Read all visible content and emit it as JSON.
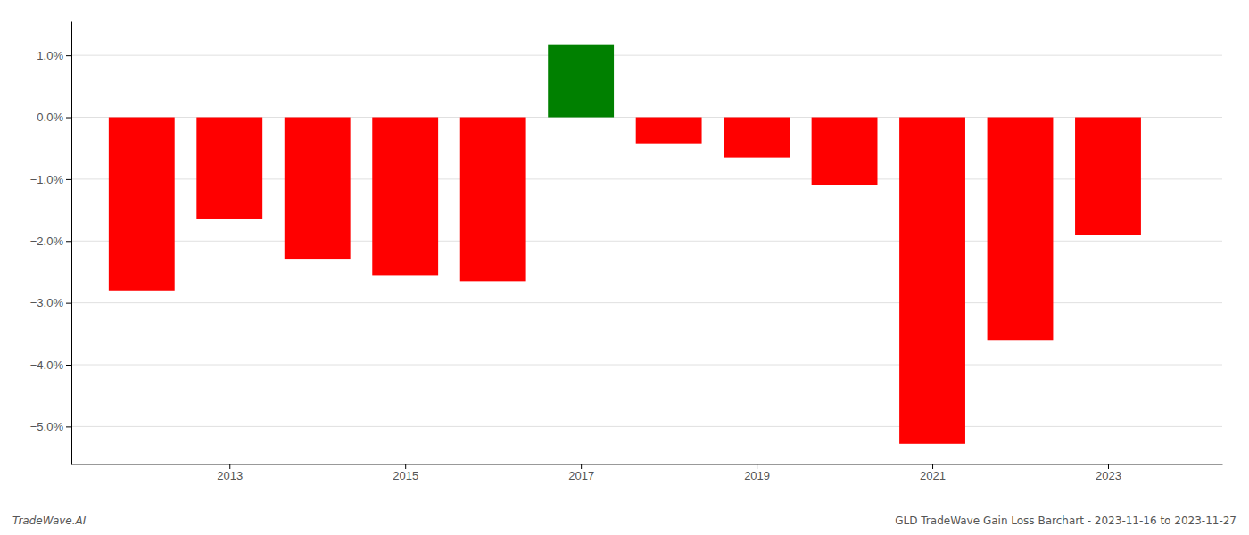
{
  "chart_data": {
    "type": "bar",
    "x": [
      2012,
      2013,
      2014,
      2015,
      2016,
      2017,
      2018,
      2019,
      2020,
      2021,
      2022,
      2023
    ],
    "values": [
      -2.8,
      -1.65,
      -2.3,
      -2.55,
      -2.65,
      1.18,
      -0.42,
      -0.65,
      -1.1,
      -5.28,
      -3.6,
      -1.9
    ],
    "colors": [
      "#ff0000",
      "#ff0000",
      "#ff0000",
      "#ff0000",
      "#ff0000",
      "#008000",
      "#ff0000",
      "#ff0000",
      "#ff0000",
      "#ff0000",
      "#ff0000",
      "#ff0000"
    ],
    "xlim": [
      2011.2,
      2024.3
    ],
    "xticks": [
      2013,
      2015,
      2017,
      2019,
      2021,
      2023
    ],
    "ylim": [
      -5.6,
      1.55
    ],
    "yticks": [
      {
        "value": 1.0,
        "label": "1.0%"
      },
      {
        "value": 0.0,
        "label": "0.0%"
      },
      {
        "value": -1.0,
        "label": "−1.0%"
      },
      {
        "value": -2.0,
        "label": "−2.0%"
      },
      {
        "value": -3.0,
        "label": "−3.0%"
      },
      {
        "value": -4.0,
        "label": "−4.0%"
      },
      {
        "value": -5.0,
        "label": "−5.0%"
      }
    ],
    "grid": true,
    "annotations": [
      "TradeWave.AI",
      "GLD TradeWave Gain Loss Barchart - 2023-11-16 to 2023-11-27"
    ]
  }
}
